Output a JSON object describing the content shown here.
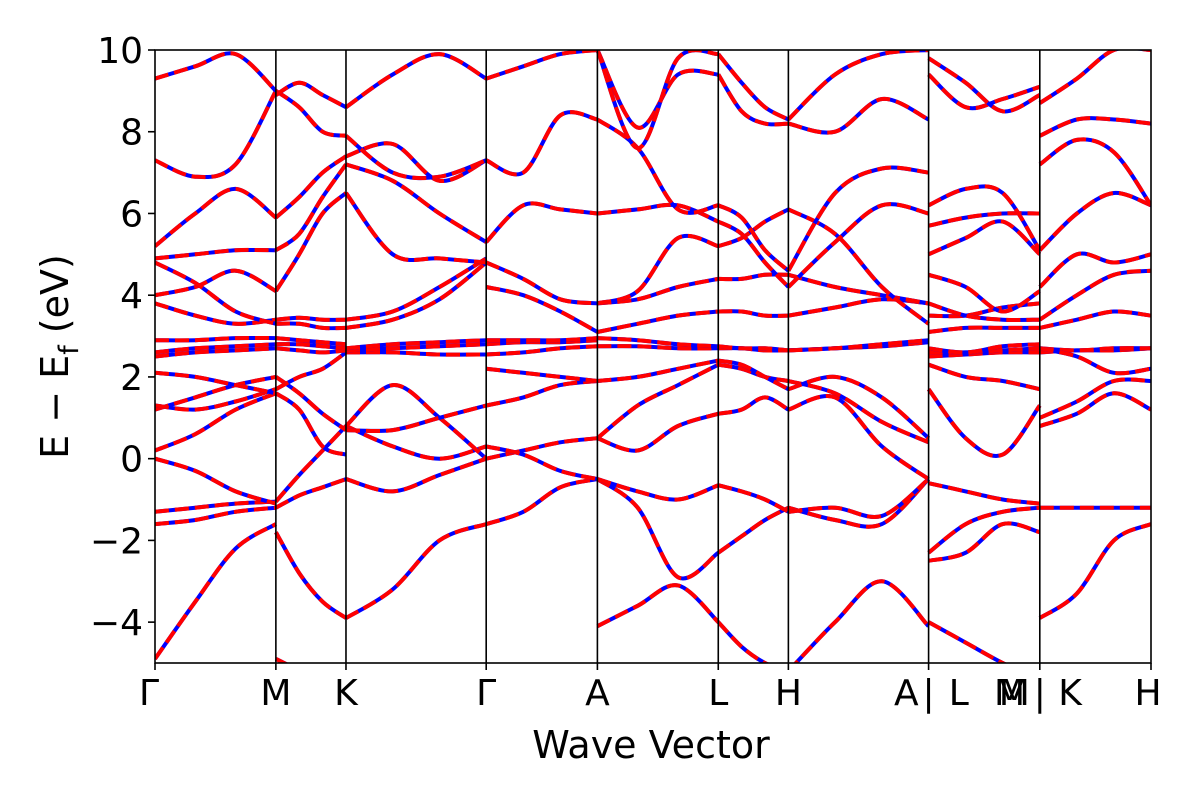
{
  "chart_data": {
    "type": "line",
    "title": "",
    "xlabel": "Wave Vector",
    "ylabel_main": "E − E",
    "ylabel_sub": "f",
    "ylabel_unit": " (eV)",
    "ylim": [
      -5,
      10
    ],
    "yticks": [
      -4,
      -2,
      0,
      2,
      4,
      6,
      8,
      10
    ],
    "ytick_labels": [
      "−4",
      "−2",
      "0",
      "2",
      "4",
      "6",
      "8",
      "10"
    ],
    "kpath_ticks": [
      {
        "k": 0.0,
        "label": "Γ"
      },
      {
        "k": 1.0,
        "label": "M"
      },
      {
        "k": 1.58,
        "label": "K"
      },
      {
        "k": 2.74,
        "label": "Γ"
      },
      {
        "k": 3.66,
        "label": "A"
      },
      {
        "k": 4.66,
        "label": "L"
      },
      {
        "k": 5.24,
        "label": "H"
      },
      {
        "k": 6.4,
        "label": "A | L"
      },
      {
        "k": 7.32,
        "label": "M | K"
      },
      {
        "k": 8.24,
        "label": "H"
      }
    ],
    "extra_labels": [
      {
        "k": 6.65,
        "label": "L"
      },
      {
        "k": 7.07,
        "label": "M"
      },
      {
        "k": 7.57,
        "label": "K"
      }
    ],
    "grid": false,
    "series_colors": [
      "#0000ff",
      "#ff0000"
    ],
    "segments": [
      {
        "k0": 0.0,
        "k1": 1.0,
        "bands": [
          [
            -4.9,
            -3.5,
            -2.2,
            -1.6
          ],
          [
            -1.6,
            -1.5,
            -1.3,
            -1.2
          ],
          [
            -1.3,
            -1.2,
            -1.1,
            -1.05
          ],
          [
            0.0,
            -0.3,
            -0.8,
            -1.1
          ],
          [
            0.2,
            0.6,
            1.2,
            1.6
          ],
          [
            1.2,
            1.5,
            1.8,
            2.0
          ],
          [
            1.3,
            1.2,
            1.4,
            1.7
          ],
          [
            2.1,
            2.0,
            1.8,
            1.6
          ],
          [
            2.5,
            2.6,
            2.65,
            2.7
          ],
          [
            2.6,
            2.7,
            2.75,
            2.8
          ],
          [
            2.9,
            2.9,
            2.95,
            2.95
          ],
          [
            3.8,
            3.5,
            3.3,
            3.4
          ],
          [
            4.0,
            4.2,
            4.6,
            4.1
          ],
          [
            4.8,
            4.3,
            3.6,
            3.3
          ],
          [
            4.9,
            5.0,
            5.1,
            5.1
          ],
          [
            5.2,
            6.0,
            6.6,
            5.9
          ],
          [
            7.3,
            6.9,
            7.2,
            9.0
          ],
          [
            9.3,
            9.6,
            9.9,
            9.0
          ]
        ]
      },
      {
        "k0": 1.0,
        "k1": 1.58,
        "bands": [
          [
            -4.9,
            -5.2,
            -5.6,
            -5.8
          ],
          [
            -1.8,
            -2.8,
            -3.5,
            -3.9
          ],
          [
            -1.2,
            -0.9,
            -0.7,
            -0.5
          ],
          [
            -1.05,
            -0.4,
            0.2,
            0.8
          ],
          [
            1.6,
            1.2,
            0.3,
            0.1
          ],
          [
            2.0,
            1.6,
            1.1,
            0.7
          ],
          [
            1.7,
            2.0,
            2.2,
            2.6
          ],
          [
            2.7,
            2.65,
            2.6,
            2.65
          ],
          [
            2.8,
            2.8,
            2.75,
            2.7
          ],
          [
            2.95,
            2.9,
            2.85,
            2.8
          ],
          [
            3.3,
            3.3,
            3.2,
            3.2
          ],
          [
            3.4,
            3.45,
            3.4,
            3.4
          ],
          [
            4.1,
            5.0,
            6.0,
            6.5
          ],
          [
            5.1,
            5.5,
            6.4,
            7.2
          ],
          [
            5.9,
            6.4,
            7.0,
            7.4
          ],
          [
            9.0,
            8.6,
            8.0,
            7.9
          ],
          [
            8.9,
            9.2,
            8.9,
            8.6
          ]
        ]
      },
      {
        "k0": 1.58,
        "k1": 2.74,
        "bands": [
          [
            -3.9,
            -3.2,
            -2.0,
            -1.6
          ],
          [
            -0.5,
            -0.8,
            -0.4,
            0.0
          ],
          [
            0.8,
            0.3,
            0.0,
            0.3
          ],
          [
            0.8,
            1.8,
            1.0,
            0.0
          ],
          [
            0.7,
            0.7,
            1.0,
            1.3
          ],
          [
            2.6,
            2.6,
            2.55,
            2.55
          ],
          [
            2.65,
            2.7,
            2.75,
            2.8
          ],
          [
            2.7,
            2.8,
            2.85,
            2.9
          ],
          [
            3.2,
            3.4,
            3.9,
            4.8
          ],
          [
            3.4,
            3.6,
            4.2,
            4.9
          ],
          [
            6.5,
            5.0,
            4.9,
            4.8
          ],
          [
            7.2,
            6.8,
            6.0,
            5.3
          ],
          [
            7.4,
            7.7,
            6.8,
            7.3
          ],
          [
            7.9,
            7.0,
            6.9,
            7.3
          ],
          [
            8.6,
            9.4,
            9.9,
            9.3
          ]
        ]
      },
      {
        "k0": 2.74,
        "k1": 3.66,
        "bands": [
          [
            -1.6,
            -1.3,
            -0.7,
            -0.5
          ],
          [
            0.0,
            0.2,
            0.4,
            0.5
          ],
          [
            0.3,
            0.1,
            -0.3,
            -0.5
          ],
          [
            1.3,
            1.5,
            1.8,
            1.9
          ],
          [
            2.2,
            2.1,
            2.0,
            1.9
          ],
          [
            2.55,
            2.6,
            2.7,
            2.75
          ],
          [
            2.8,
            2.85,
            2.85,
            2.9
          ],
          [
            2.9,
            2.9,
            2.9,
            2.95
          ],
          [
            4.2,
            4.0,
            3.6,
            3.1
          ],
          [
            4.8,
            4.4,
            3.9,
            3.8
          ],
          [
            5.3,
            6.2,
            6.1,
            6.0
          ],
          [
            7.3,
            7.0,
            8.4,
            8.3
          ],
          [
            9.3,
            9.6,
            9.9,
            10.0
          ]
        ]
      },
      {
        "k0": 3.66,
        "k1": 4.66,
        "bands": [
          [
            -4.1,
            -3.6,
            -3.1,
            -4.0
          ],
          [
            -0.5,
            -1.2,
            -2.9,
            -2.3
          ],
          [
            -0.5,
            -0.8,
            -1.0,
            -0.65
          ],
          [
            0.5,
            0.2,
            0.8,
            1.1
          ],
          [
            0.5,
            1.3,
            1.8,
            2.3
          ],
          [
            1.9,
            2.0,
            2.2,
            2.4
          ],
          [
            2.75,
            2.75,
            2.7,
            2.7
          ],
          [
            2.95,
            2.9,
            2.8,
            2.75
          ],
          [
            3.1,
            3.3,
            3.5,
            3.6
          ],
          [
            3.8,
            3.9,
            4.2,
            4.4
          ],
          [
            3.8,
            4.1,
            5.4,
            5.2
          ],
          [
            6.0,
            6.1,
            6.2,
            5.8
          ],
          [
            8.3,
            7.6,
            6.1,
            6.2
          ],
          [
            10.0,
            8.1,
            9.4,
            9.4
          ],
          [
            10.0,
            7.6,
            9.8,
            9.9
          ]
        ]
      },
      {
        "k0": 4.66,
        "k1": 5.24,
        "bands": [
          [
            -4.0,
            -4.6,
            -5.0,
            -5.2
          ],
          [
            -2.3,
            -1.9,
            -1.5,
            -1.2
          ],
          [
            -0.65,
            -0.8,
            -1.0,
            -1.3
          ],
          [
            1.1,
            1.2,
            1.5,
            1.2
          ],
          [
            2.3,
            2.2,
            2.0,
            1.9
          ],
          [
            2.4,
            2.3,
            2.0,
            1.7
          ],
          [
            2.7,
            2.7,
            2.65,
            2.65
          ],
          [
            2.75,
            2.7,
            2.7,
            2.65
          ],
          [
            3.6,
            3.6,
            3.5,
            3.5
          ],
          [
            4.4,
            4.4,
            4.5,
            4.5
          ],
          [
            5.2,
            5.4,
            5.8,
            6.1
          ],
          [
            5.8,
            5.5,
            4.8,
            4.2
          ],
          [
            6.2,
            5.9,
            5.1,
            4.6
          ],
          [
            9.4,
            8.5,
            8.2,
            8.2
          ],
          [
            9.9,
            9.2,
            8.6,
            8.3
          ]
        ]
      },
      {
        "k0": 5.24,
        "k1": 6.4,
        "bands": [
          [
            -5.2,
            -4.0,
            -3.0,
            -4.1
          ],
          [
            -1.2,
            -1.5,
            -1.6,
            -0.5
          ],
          [
            -1.3,
            -1.2,
            -1.4,
            -0.5
          ],
          [
            1.2,
            1.5,
            0.3,
            -0.5
          ],
          [
            1.9,
            1.6,
            0.9,
            0.4
          ],
          [
            1.7,
            2.0,
            1.5,
            0.5
          ],
          [
            2.65,
            2.7,
            2.75,
            2.85
          ],
          [
            2.65,
            2.7,
            2.8,
            2.9
          ],
          [
            3.5,
            3.7,
            3.9,
            3.8
          ],
          [
            4.5,
            4.2,
            4.0,
            3.8
          ],
          [
            6.1,
            5.5,
            4.2,
            3.3
          ],
          [
            4.2,
            5.3,
            6.2,
            6.0
          ],
          [
            4.6,
            6.5,
            7.1,
            7.0
          ],
          [
            8.2,
            8.0,
            8.8,
            8.3
          ],
          [
            8.3,
            9.4,
            9.9,
            10.0
          ]
        ]
      },
      {
        "k0": 6.4,
        "k1": 7.32,
        "bands": [
          [
            -4.0,
            -4.5,
            -5.0,
            -5.4
          ],
          [
            -2.3,
            -1.6,
            -1.3,
            -1.2
          ],
          [
            -2.5,
            -2.3,
            -1.6,
            -1.8
          ],
          [
            -0.6,
            -0.8,
            -1.0,
            -1.1
          ],
          [
            1.7,
            0.5,
            0.1,
            1.3
          ],
          [
            2.3,
            2.0,
            1.9,
            1.7
          ],
          [
            2.5,
            2.55,
            2.6,
            2.6
          ],
          [
            2.6,
            2.6,
            2.65,
            2.7
          ],
          [
            2.7,
            2.6,
            2.75,
            2.8
          ],
          [
            3.1,
            3.2,
            3.2,
            3.2
          ],
          [
            3.5,
            3.5,
            3.7,
            3.8
          ],
          [
            3.8,
            3.5,
            3.4,
            3.4
          ],
          [
            4.5,
            4.2,
            3.6,
            4.1
          ],
          [
            5.0,
            5.4,
            5.8,
            5.0
          ],
          [
            5.7,
            5.9,
            6.0,
            6.0
          ],
          [
            6.2,
            6.6,
            6.5,
            5.1
          ],
          [
            9.4,
            8.6,
            8.8,
            9.1
          ],
          [
            9.8,
            9.2,
            8.5,
            8.9
          ]
        ]
      },
      {
        "k0": 7.32,
        "k1": 8.24,
        "bands": [
          [
            -3.9,
            -3.3,
            -2.0,
            -1.6
          ],
          [
            -1.2,
            -1.2,
            -1.2,
            -1.2
          ],
          [
            0.8,
            1.1,
            1.6,
            1.2
          ],
          [
            1.0,
            1.4,
            1.9,
            1.9
          ],
          [
            2.6,
            2.65,
            2.65,
            2.7
          ],
          [
            2.7,
            2.65,
            2.7,
            2.7
          ],
          [
            2.7,
            2.5,
            2.1,
            2.2
          ],
          [
            3.2,
            3.4,
            3.6,
            3.5
          ],
          [
            3.4,
            4.0,
            4.5,
            4.6
          ],
          [
            4.2,
            5.0,
            4.8,
            5.0
          ],
          [
            5.1,
            6.0,
            6.5,
            6.2
          ],
          [
            7.9,
            8.3,
            8.3,
            8.2
          ],
          [
            7.2,
            7.8,
            7.5,
            6.2
          ],
          [
            8.7,
            9.3,
            10.0,
            10.0
          ]
        ]
      }
    ]
  }
}
